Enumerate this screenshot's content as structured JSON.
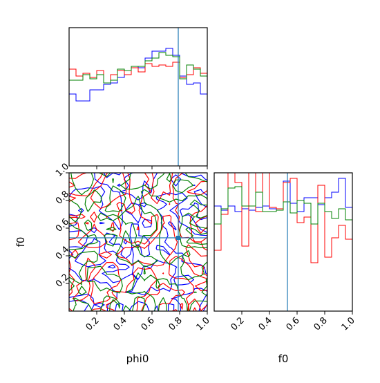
{
  "chart_data": {
    "type": "corner",
    "truth": {
      "phi0": 0.79,
      "f0": 0.53
    },
    "colors": {
      "A": "#0000ff",
      "B": "#ff0000",
      "C": "#008000",
      "truth": "#1f77b4"
    },
    "axes": {
      "phi0": {
        "label": "phi0",
        "range": [
          0,
          1
        ],
        "ticks": [
          0.2,
          0.4,
          0.6,
          0.8,
          1.0
        ],
        "tick_labels": [
          "0.2",
          "0.4",
          "0.6",
          "0.8",
          "1.0"
        ]
      },
      "f0": {
        "label": "f0",
        "range": [
          0,
          1
        ],
        "ticks": [
          0.2,
          0.4,
          0.6,
          0.8,
          1.0
        ],
        "tick_labels": [
          "0.2",
          "0.4",
          "0.6",
          "0.8",
          "1.0"
        ]
      }
    },
    "marginal_phi0": {
      "bins": 20,
      "series": [
        {
          "color_key": "A",
          "values": [
            0.52,
            0.47,
            0.47,
            0.55,
            0.55,
            0.59,
            0.6,
            0.64,
            0.66,
            0.72,
            0.71,
            0.78,
            0.83,
            0.83,
            0.85,
            0.8,
            0.65,
            0.59,
            0.6,
            0.52
          ]
        },
        {
          "color_key": "B",
          "values": [
            0.7,
            0.65,
            0.67,
            0.64,
            0.69,
            0.6,
            0.66,
            0.69,
            0.66,
            0.71,
            0.68,
            0.74,
            0.72,
            0.73,
            0.72,
            0.75,
            0.64,
            0.66,
            0.71,
            0.67
          ]
        },
        {
          "color_key": "C",
          "values": [
            0.62,
            0.62,
            0.66,
            0.63,
            0.66,
            0.6,
            0.62,
            0.7,
            0.69,
            0.72,
            0.72,
            0.76,
            0.78,
            0.82,
            0.8,
            0.79,
            0.63,
            0.73,
            0.7,
            0.65
          ]
        }
      ]
    },
    "marginal_f0": {
      "bins": 20,
      "series": [
        {
          "color_key": "A",
          "values": [
            0.76,
            0.73,
            0.76,
            0.72,
            0.74,
            0.73,
            0.75,
            0.76,
            0.74,
            0.73,
            0.94,
            0.78,
            0.72,
            0.82,
            0.82,
            0.77,
            0.82,
            0.86,
            0.96,
            0.75
          ]
        },
        {
          "color_key": "B",
          "values": [
            0.44,
            0.7,
            1.0,
            0.93,
            0.47,
            1.0,
            0.72,
            1.0,
            0.75,
            0.74,
            0.93,
            0.96,
            0.64,
            0.68,
            0.35,
            0.91,
            0.39,
            0.53,
            0.62,
            0.52
          ]
        },
        {
          "color_key": "C",
          "values": [
            0.63,
            0.74,
            0.89,
            0.9,
            0.76,
            0.76,
            0.86,
            0.72,
            0.72,
            0.73,
            0.79,
            0.71,
            0.8,
            0.78,
            0.63,
            0.78,
            0.72,
            0.67,
            0.74,
            0.66
          ]
        }
      ]
    },
    "joint": {
      "x": "phi0",
      "y": "f0",
      "contour_series": [
        "A",
        "B",
        "C"
      ],
      "description_values": {
        "levels": [
          1.4,
          2.3
        ]
      }
    }
  }
}
